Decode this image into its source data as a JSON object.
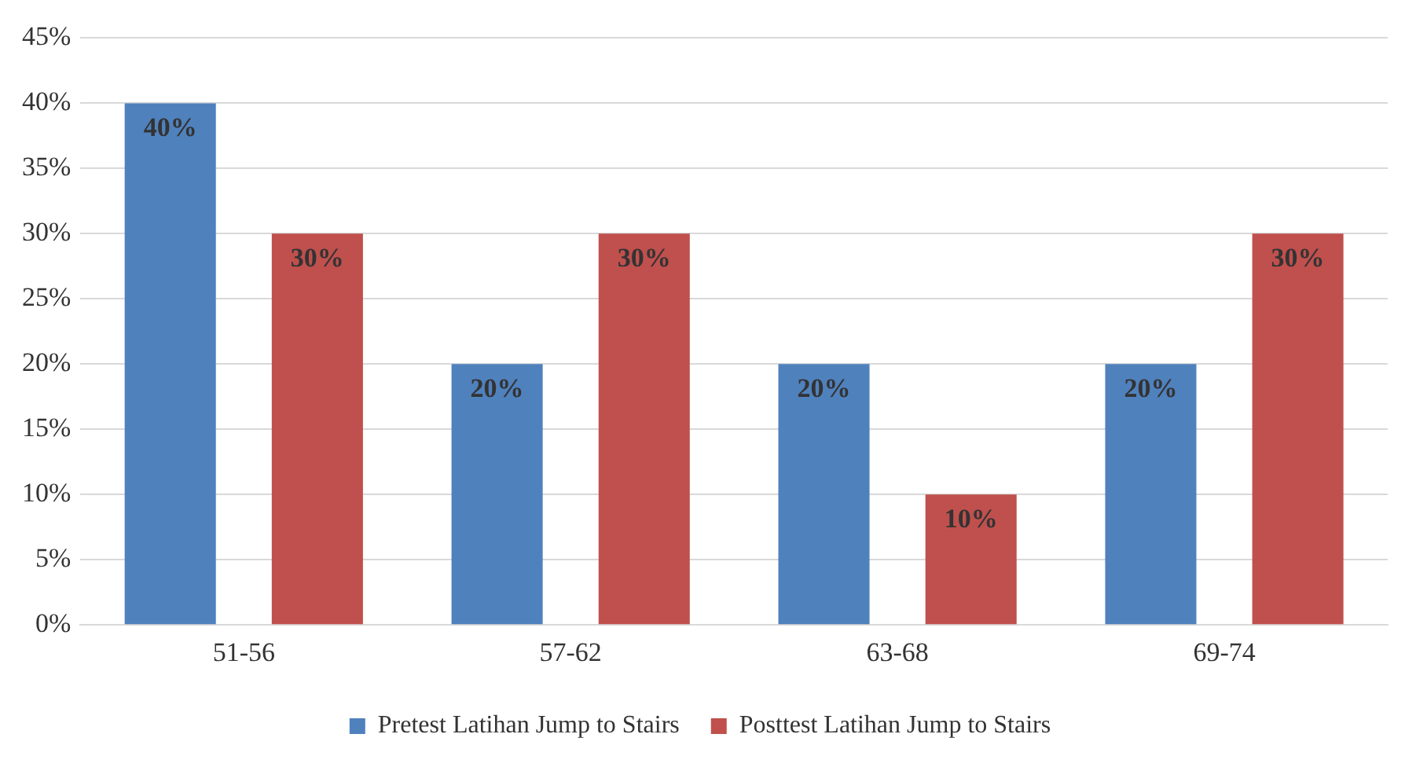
{
  "chart_data": {
    "type": "bar",
    "categories": [
      "51-56",
      "57-62",
      "63-68",
      "69-74"
    ],
    "series": [
      {
        "name": "Pretest Latihan Jump to Stairs",
        "color": "#4f81bd",
        "values": [
          40,
          20,
          20,
          20
        ],
        "value_labels": [
          "40%",
          "20%",
          "20%",
          "20%"
        ]
      },
      {
        "name": "Posttest Latihan Jump to Stairs",
        "color": "#c0504d",
        "values": [
          30,
          30,
          10,
          30
        ],
        "value_labels": [
          "30%",
          "30%",
          "10%",
          "30%"
        ]
      }
    ],
    "ylim": [
      0,
      45
    ],
    "yticks": [
      {
        "value": 0,
        "label": "0%"
      },
      {
        "value": 5,
        "label": "5%"
      },
      {
        "value": 10,
        "label": "10%"
      },
      {
        "value": 15,
        "label": "15%"
      },
      {
        "value": 20,
        "label": "20%"
      },
      {
        "value": 25,
        "label": "25%"
      },
      {
        "value": 30,
        "label": "30%"
      },
      {
        "value": 35,
        "label": "35%"
      },
      {
        "value": 40,
        "label": "40%"
      },
      {
        "value": 45,
        "label": "45%"
      }
    ],
    "grid": "y",
    "legend": "bottom"
  }
}
